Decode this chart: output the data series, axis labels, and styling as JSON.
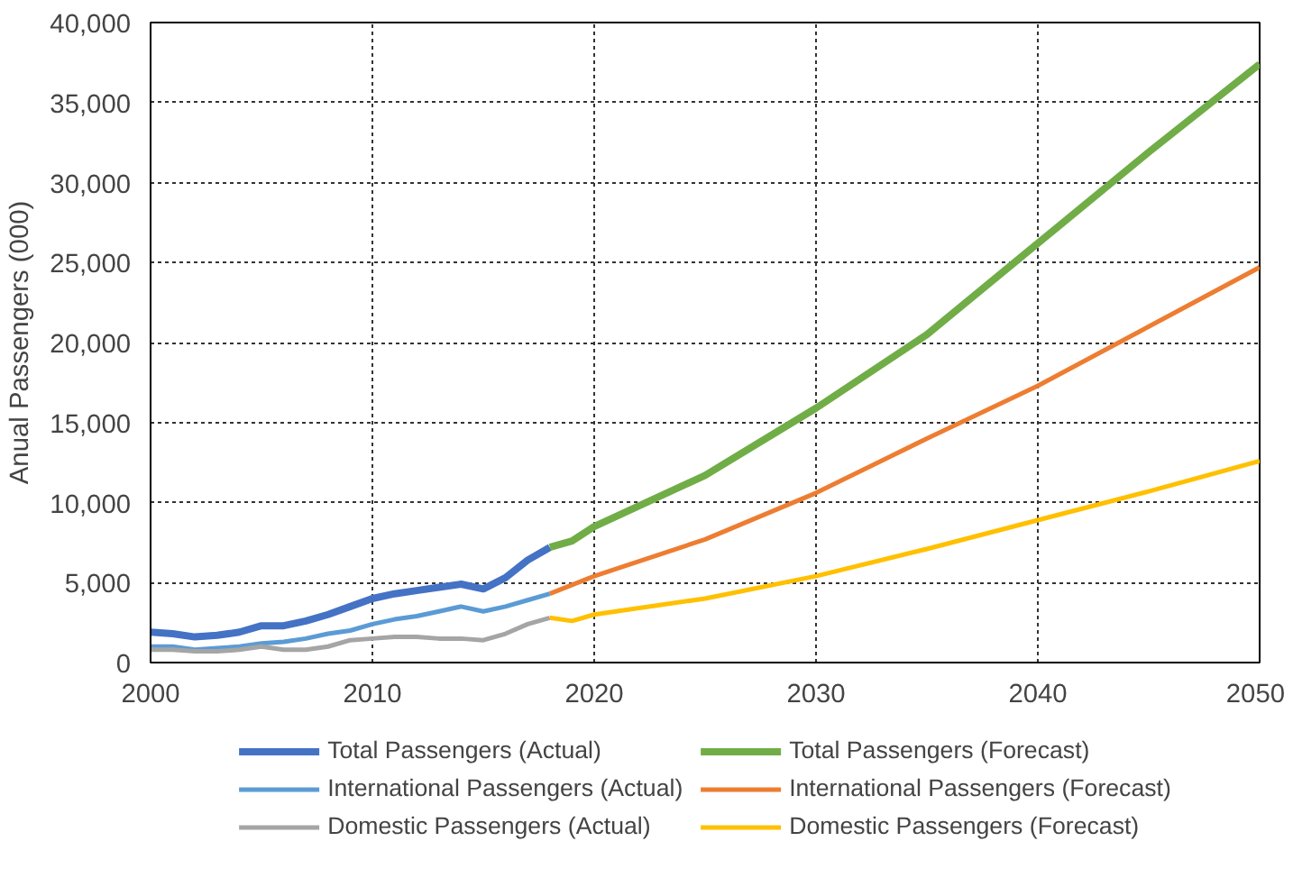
{
  "chart_data": {
    "type": "line",
    "ylabel": "Anual Passengers (000)",
    "xlim": [
      2000,
      2050
    ],
    "xticks": [
      2000,
      2010,
      2020,
      2030,
      2040,
      2050
    ],
    "ylim": [
      0,
      40000
    ],
    "yticks": [
      {
        "value": 0,
        "label": "0"
      },
      {
        "value": 5000,
        "label": "5,000"
      },
      {
        "value": 10000,
        "label": "10,000"
      },
      {
        "value": 15000,
        "label": "15,000"
      },
      {
        "value": 20000,
        "label": "20,000"
      },
      {
        "value": 25000,
        "label": "25,000"
      },
      {
        "value": 30000,
        "label": "30,000"
      },
      {
        "value": 35000,
        "label": "35,000"
      },
      {
        "value": 40000,
        "label": "40,000"
      }
    ],
    "grid": true,
    "legend": "bottom",
    "marker": "none",
    "line_style": "solid",
    "series": [
      {
        "name": "Total Passengers (Actual)",
        "color": "#4472c4",
        "x": [
          2000,
          2001,
          2002,
          2003,
          2004,
          2005,
          2006,
          2007,
          2008,
          2009,
          2010,
          2011,
          2012,
          2013,
          2014,
          2015,
          2016,
          2017,
          2018
        ],
        "values": [
          1900,
          1800,
          1600,
          1700,
          1900,
          2300,
          2300,
          2600,
          3000,
          3500,
          4000,
          4300,
          4500,
          4700,
          4900,
          4600,
          5300,
          6400,
          7200
        ]
      },
      {
        "name": "Total Passengers (Forecast)",
        "color": "#70ad47",
        "x": [
          2018,
          2019,
          2020,
          2025,
          2030,
          2035,
          2040,
          2045,
          2050
        ],
        "values": [
          7200,
          7600,
          8500,
          11700,
          15900,
          20500,
          26200,
          31900,
          37400
        ]
      },
      {
        "name": "International Passengers (Actual)",
        "color": "#5b9bd5",
        "x": [
          2000,
          2001,
          2002,
          2003,
          2004,
          2005,
          2006,
          2007,
          2008,
          2009,
          2010,
          2011,
          2012,
          2013,
          2014,
          2015,
          2016,
          2017,
          2018
        ],
        "values": [
          1000,
          1000,
          800,
          900,
          1000,
          1200,
          1300,
          1500,
          1800,
          2000,
          2400,
          2700,
          2900,
          3200,
          3500,
          3200,
          3500,
          3900,
          4300
        ]
      },
      {
        "name": "International Passengers (Forecast)",
        "color": "#ed7d31",
        "x": [
          2018,
          2020,
          2025,
          2030,
          2035,
          2040,
          2045,
          2050
        ],
        "values": [
          4300,
          5400,
          7700,
          10600,
          14000,
          17300,
          21000,
          24700
        ]
      },
      {
        "name": "Domestic Passengers (Actual)",
        "color": "#a5a5a5",
        "x": [
          2000,
          2001,
          2002,
          2003,
          2004,
          2005,
          2006,
          2007,
          2008,
          2009,
          2010,
          2011,
          2012,
          2013,
          2014,
          2015,
          2016,
          2017,
          2018
        ],
        "values": [
          800,
          800,
          700,
          700,
          800,
          1000,
          800,
          800,
          1000,
          1400,
          1500,
          1600,
          1600,
          1500,
          1500,
          1400,
          1800,
          2400,
          2800
        ]
      },
      {
        "name": "Domestic Passengers (Forecast)",
        "color": "#ffc000",
        "x": [
          2018,
          2019,
          2020,
          2025,
          2030,
          2035,
          2040,
          2045,
          2050
        ],
        "values": [
          2800,
          2600,
          3000,
          4000,
          5400,
          7100,
          8900,
          10700,
          12600
        ]
      }
    ]
  }
}
